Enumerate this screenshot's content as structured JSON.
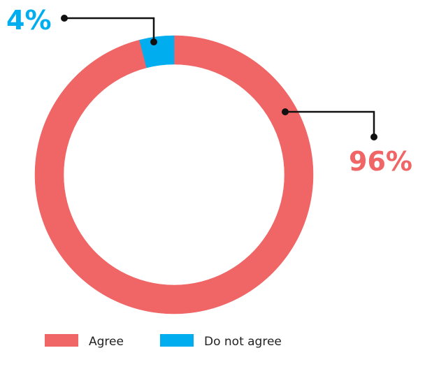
{
  "chart_data": {
    "type": "pie",
    "style": "donut",
    "slices": [
      {
        "label": "Agree",
        "value": 96,
        "display": "96%",
        "color": "#F06565"
      },
      {
        "label": "Do not agree",
        "value": 4,
        "display": "4%",
        "color": "#00AEEF"
      }
    ],
    "legend": {
      "position": "bottom",
      "items": [
        "Agree",
        "Do not agree"
      ]
    }
  }
}
